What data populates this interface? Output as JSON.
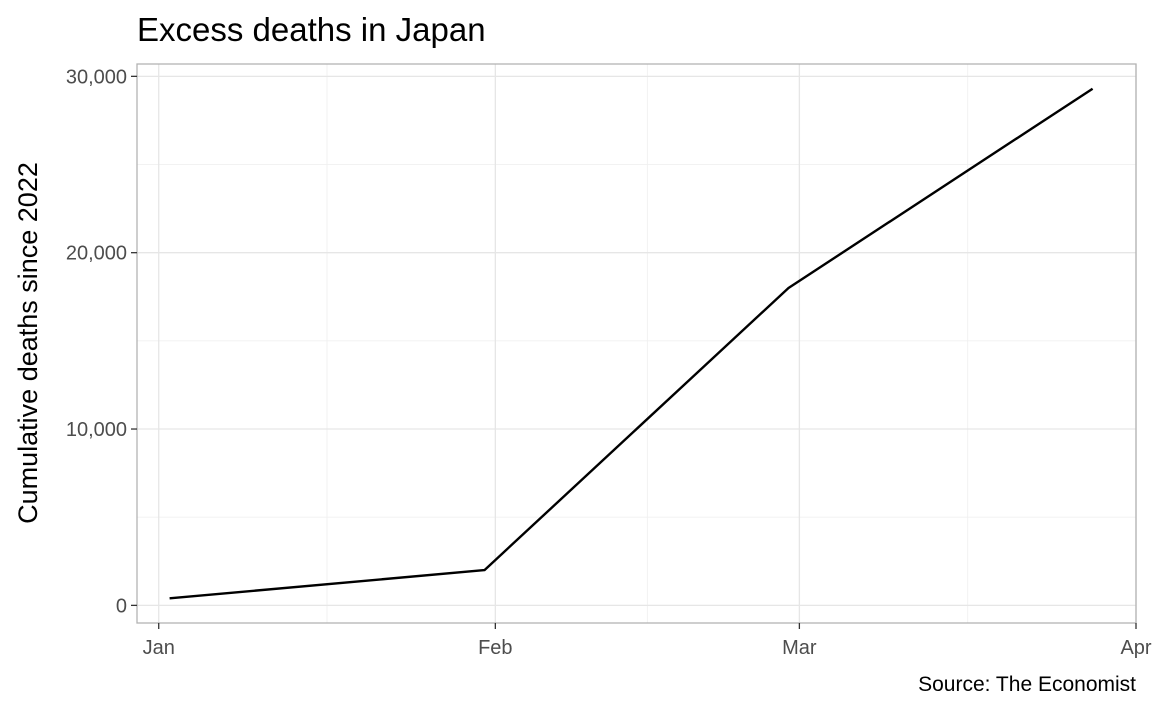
{
  "chart_data": {
    "type": "line",
    "title": "Excess deaths in Japan",
    "xlabel": "",
    "ylabel": "Cumulative deaths since 2022",
    "caption": "Source: The Economist",
    "x": [
      "2022-01-02",
      "2022-01-31",
      "2022-02-28",
      "2022-03-28"
    ],
    "y": [
      400,
      2000,
      18000,
      29300
    ],
    "xlim": [
      "2021-12-30",
      "2022-04-01"
    ],
    "ylim": [
      -1000,
      30700
    ],
    "x_ticks": [
      "2022-01-01",
      "2022-02-01",
      "2022-03-01",
      "2022-04-01"
    ],
    "x_tick_labels": [
      "Jan",
      "Feb",
      "Mar",
      "Apr"
    ],
    "y_ticks": [
      0,
      10000,
      20000,
      30000
    ],
    "y_tick_labels": [
      "0",
      "10,000",
      "20,000",
      "30,000"
    ],
    "grid": true,
    "line_color": "#000000"
  }
}
